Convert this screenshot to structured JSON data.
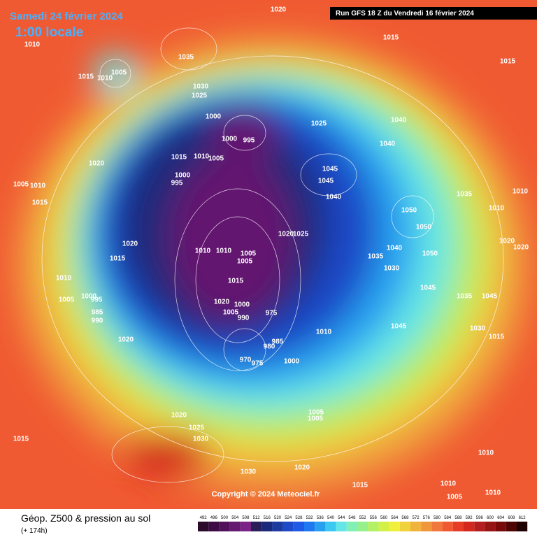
{
  "header": {
    "date": "Samedi 24 février 2024",
    "time": "1:00 locale",
    "run": "Run GFS 18 Z du Vendredi 16 février 2024"
  },
  "copyright": "Copyright © 2024 Meteociel.fr",
  "footer": {
    "title": "Géop. Z500 & pression au sol",
    "lead": "(+ 174h)"
  },
  "colorbar": {
    "ticks": [
      492,
      496,
      500,
      504,
      508,
      512,
      516,
      520,
      524,
      528,
      532,
      536,
      540,
      544,
      548,
      552,
      556,
      560,
      564,
      568,
      572,
      576,
      580,
      584,
      588,
      592,
      596,
      600,
      604,
      608,
      612
    ],
    "colors": [
      "#2b0a2b",
      "#3d0a45",
      "#50105a",
      "#641870",
      "#7a2285",
      "#2a1e5a",
      "#1a2a7a",
      "#1c3aa0",
      "#1e4ac8",
      "#1e5ae6",
      "#1e78f0",
      "#28a0f0",
      "#3cc8f0",
      "#64e6e6",
      "#82f0b4",
      "#96f08c",
      "#b4f064",
      "#d2f046",
      "#f0f03c",
      "#f0d23c",
      "#f0b43c",
      "#f0963c",
      "#f0783c",
      "#f05a32",
      "#e63c28",
      "#d2281e",
      "#b41e1e",
      "#961414",
      "#780a0a",
      "#500505",
      "#1e0000"
    ]
  },
  "isobar_labels": [
    "1020",
    "1010",
    "1035",
    "1015",
    "1010",
    "1005",
    "1030",
    "1025",
    "1015",
    "1015",
    "1000",
    "1000",
    "995",
    "1025",
    "1040",
    "1040",
    "1015",
    "1010",
    "1005",
    "1020",
    "1000",
    "995",
    "1005",
    "1010",
    "1015",
    "1045",
    "1045",
    "1040",
    "1050",
    "1050",
    "1035",
    "1010",
    "1010",
    "1020",
    "1025",
    "1020",
    "1010",
    "1010",
    "1005",
    "1005",
    "1015",
    "1040",
    "1035",
    "1030",
    "1050",
    "1020",
    "1020",
    "1010",
    "1015",
    "1005",
    "1000",
    "995",
    "985",
    "990",
    "1020",
    "1000",
    "975",
    "1005",
    "990",
    "1045",
    "1035",
    "1045",
    "1045",
    "1030",
    "1015",
    "1010",
    "985",
    "980",
    "970",
    "975",
    "1000",
    "1020",
    "1005",
    "1005",
    "1020",
    "1025",
    "1030",
    "1015",
    "1020",
    "1030",
    "1015",
    "1010",
    "1010",
    "1005",
    "1010"
  ]
}
